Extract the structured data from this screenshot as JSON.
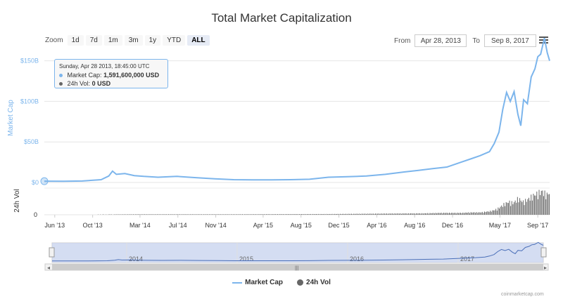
{
  "title": "Total Market Capitalization",
  "zoom": {
    "label": "Zoom",
    "buttons": [
      "1d",
      "7d",
      "1m",
      "3m",
      "1y",
      "YTD",
      "ALL"
    ],
    "active": "ALL"
  },
  "range": {
    "from_label": "From",
    "from_value": "Apr 28, 2013",
    "to_label": "To",
    "to_value": "Sep 8, 2017"
  },
  "menu": {
    "icon": "hamburger-menu-icon"
  },
  "tooltip": {
    "date": "Sunday, Apr 28 2013, 18:45:00 UTC",
    "market_cap_label": "Market Cap:",
    "market_cap_value": "1,591,600,000 USD",
    "vol_label": "24h Vol:",
    "vol_value": "0 USD"
  },
  "legend": {
    "market_cap": "Market Cap",
    "vol": "24h Vol"
  },
  "credits": "coinmarketcap.com",
  "colors": {
    "market_cap": "#7cb5ec",
    "vol": "#666666",
    "navigator_fill": "#c6d1ee",
    "navigator_line": "#4a6fb8"
  },
  "chart_data": {
    "type": "line",
    "title": "Total Market Capitalization",
    "ylabel": "Market Cap",
    "ylabel_vol": "24h Vol",
    "y_ticks": [
      "$0",
      "$50B",
      "$100B",
      "$150B"
    ],
    "y_tick_values": [
      0,
      50,
      100,
      150
    ],
    "vol_ticks": [
      "0"
    ],
    "ylim": [
      0,
      160
    ],
    "x_ticks": [
      "Jun '13",
      "Oct '13",
      "Mar '14",
      "Jul '14",
      "Nov '14",
      "Apr '15",
      "Aug '15",
      "Dec '15",
      "Apr '16",
      "Aug '16",
      "Dec '16",
      "May '17",
      "Sep '17"
    ],
    "x_tick_months": [
      1.1,
      5.1,
      10.1,
      14.1,
      18.1,
      23.1,
      27.1,
      31.1,
      35.1,
      39.1,
      43.1,
      48.1,
      52.1
    ],
    "x_range_months": [
      0,
      53.35
    ],
    "navigator_years": [
      "2014",
      "2015",
      "2016",
      "2017"
    ],
    "navigator_year_months": [
      8.1,
      20.1,
      32.1,
      44.1
    ],
    "series": [
      {
        "name": "Market Cap",
        "x": [
          0,
          2,
          4,
          6,
          6.8,
          7.2,
          7.6,
          8.5,
          9.5,
          10.5,
          12,
          14,
          16,
          18,
          20,
          22,
          24,
          26,
          28,
          30,
          32,
          34,
          36,
          38,
          39.5,
          41,
          42.5,
          44,
          45,
          46,
          47,
          47.5,
          48,
          48.4,
          48.8,
          49.2,
          49.6,
          50,
          50.3,
          50.6,
          51,
          51.4,
          51.8,
          52.1,
          52.4,
          52.8,
          53.1,
          53.35
        ],
        "values": [
          1.6,
          1.5,
          1.8,
          3.5,
          8,
          14,
          10,
          11,
          8.5,
          7.5,
          6.5,
          7.5,
          6,
          4.5,
          3.5,
          3.2,
          3.3,
          3.5,
          4,
          6.5,
          7.2,
          8,
          10,
          13,
          15,
          17,
          19,
          25,
          29,
          33,
          38,
          48,
          62,
          90,
          111,
          100,
          112,
          84,
          70,
          102,
          97,
          130,
          140,
          155,
          158,
          178,
          160,
          150
        ]
      },
      {
        "name": "24h Vol",
        "x": [
          0,
          10,
          20,
          30,
          36,
          40,
          42,
          44,
          45,
          46,
          47,
          47.5,
          48,
          48.5,
          49,
          49.5,
          50,
          50.5,
          51,
          51.5,
          52,
          52.5,
          53,
          53.35
        ],
        "values": [
          0,
          0.02,
          0.02,
          0.03,
          0.05,
          0.06,
          0.08,
          0.08,
          0.1,
          0.1,
          0.15,
          0.2,
          0.3,
          0.45,
          0.55,
          0.5,
          0.7,
          0.55,
          0.65,
          0.8,
          0.9,
          1.0,
          0.85,
          0.95
        ]
      }
    ]
  }
}
